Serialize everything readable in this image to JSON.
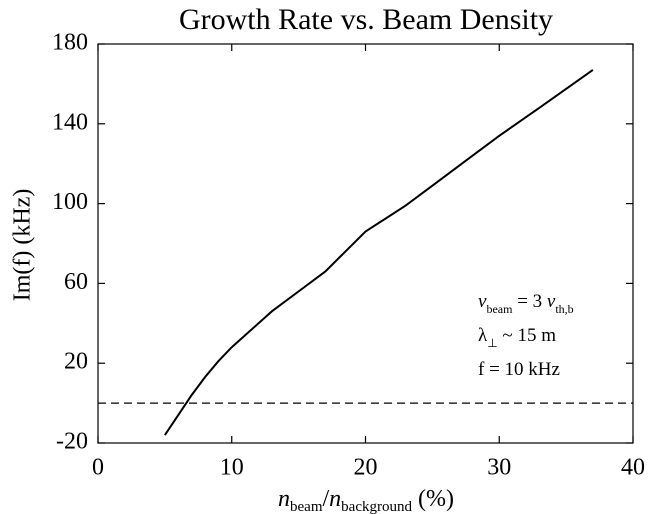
{
  "chart_data": {
    "type": "line",
    "title": "Growth Rate vs. Beam Density",
    "ylabel": "Im(f) (kHz)",
    "xlabel": [
      {
        "text": "n",
        "italic": true
      },
      {
        "text": "beam",
        "sub": true
      },
      {
        "text": "/"
      },
      {
        "text": "n",
        "italic": true
      },
      {
        "text": "background",
        "sub": true
      },
      {
        "text": " (%)"
      }
    ],
    "annotations": [
      [
        {
          "text": "v",
          "italic": true
        },
        {
          "text": "beam",
          "sub": true
        },
        {
          "text": " = 3 "
        },
        {
          "text": "v",
          "italic": true
        },
        {
          "text": "th,b",
          "sub": true
        }
      ],
      [
        {
          "text": "λ"
        },
        {
          "text": "⊥",
          "sub": true
        },
        {
          "text": " ~ 15 m"
        }
      ],
      [
        {
          "text": "f = 10 kHz"
        }
      ]
    ],
    "x": [
      5,
      6,
      7,
      8,
      9,
      10,
      11,
      13,
      15,
      17,
      20,
      23,
      25,
      28,
      30,
      33,
      37
    ],
    "series": [
      {
        "color": "#000000",
        "values": [
          -16,
          -6,
          4,
          13,
          21,
          28,
          34,
          46,
          56,
          66,
          86,
          99,
          109,
          124,
          134,
          148,
          167
        ]
      }
    ],
    "hline": 0,
    "xlim": [
      0,
      40
    ],
    "xticks": [
      0,
      10,
      20,
      30,
      40
    ],
    "ylim": [
      -20,
      180
    ],
    "yticks": [
      -20,
      20,
      60,
      100,
      140,
      180
    ]
  }
}
